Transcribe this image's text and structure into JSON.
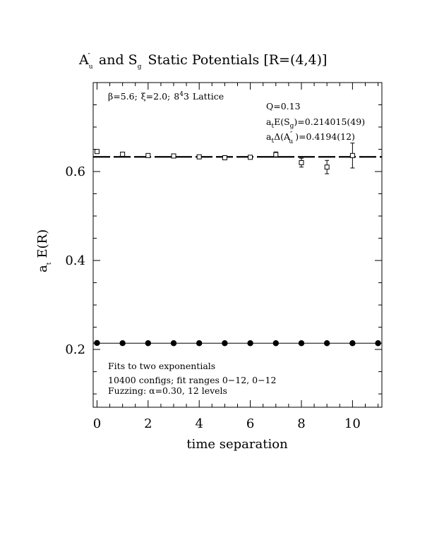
{
  "chart_data": {
    "type": "scatter",
    "title": {
      "a": "A",
      "a_sub": "u",
      "a_sup": "″",
      "mid": "and S",
      "s_sub": "g",
      "tail": "Static Potentials [R=(4,4)]"
    },
    "xlabel": "time separation",
    "ylabel": {
      "a": "a",
      "a_sub": "t",
      "tail": "E(R)"
    },
    "xlim": [
      -0.15,
      11.15
    ],
    "ylim": [
      0.07,
      0.8
    ],
    "x_ticks": [
      "0",
      "2",
      "4",
      "6",
      "8",
      "10"
    ],
    "x_tick_values": [
      0,
      2,
      4,
      6,
      8,
      10
    ],
    "y_ticks": [
      "0.2",
      "0.4",
      "0.6"
    ],
    "y_tick_values": [
      0.2,
      0.4,
      0.6
    ],
    "grid": false,
    "annotations": {
      "lattice": {
        "beta": "β=5.6;",
        "xi": "ξ=2.0;",
        "lat": "8",
        "lat_sup": "4",
        "lat2": "3",
        "tail": "Lattice"
      },
      "q": "Q=0.13",
      "energy_sg": {
        "a": "a",
        "a_sub": "t",
        "mid": "E(S",
        "sub2": "g",
        "tail": ")=0.214015(49)"
      },
      "delta_au": {
        "a": "a",
        "a_sub": "t",
        "mid": "Δ(A",
        "sup2": "″",
        "sub2": "u",
        "tail": ")=0.4194(12)"
      },
      "fit1": "Fits to two exponentials",
      "fit2": "10400 configs; fit ranges 0−12, 0−12",
      "fit3": "Fuzzing: α=0.30, 12 levels"
    },
    "series": [
      {
        "marker": "open-square",
        "x": [
          0,
          1,
          2,
          3,
          4,
          5,
          6,
          7,
          8,
          9,
          10
        ],
        "y": [
          0.645,
          0.639,
          0.636,
          0.635,
          0.633,
          0.631,
          0.632,
          0.638,
          0.62,
          0.61,
          0.636
        ],
        "err": [
          0.002,
          0.002,
          0.002,
          0.002,
          0.002,
          0.003,
          0.004,
          0.006,
          0.01,
          0.015,
          0.028
        ]
      },
      {
        "marker": "filled-circle",
        "x": [
          0,
          1,
          2,
          3,
          4,
          5,
          6,
          7,
          8,
          9,
          10,
          11
        ],
        "y": [
          0.2145,
          0.2141,
          0.214,
          0.214,
          0.214,
          0.214,
          0.214,
          0.214,
          0.214,
          0.214,
          0.214,
          0.214
        ]
      }
    ],
    "fit_lines": [
      {
        "y": 0.633,
        "style": "dashed"
      },
      {
        "y": 0.214015,
        "style": "solid"
      }
    ]
  }
}
